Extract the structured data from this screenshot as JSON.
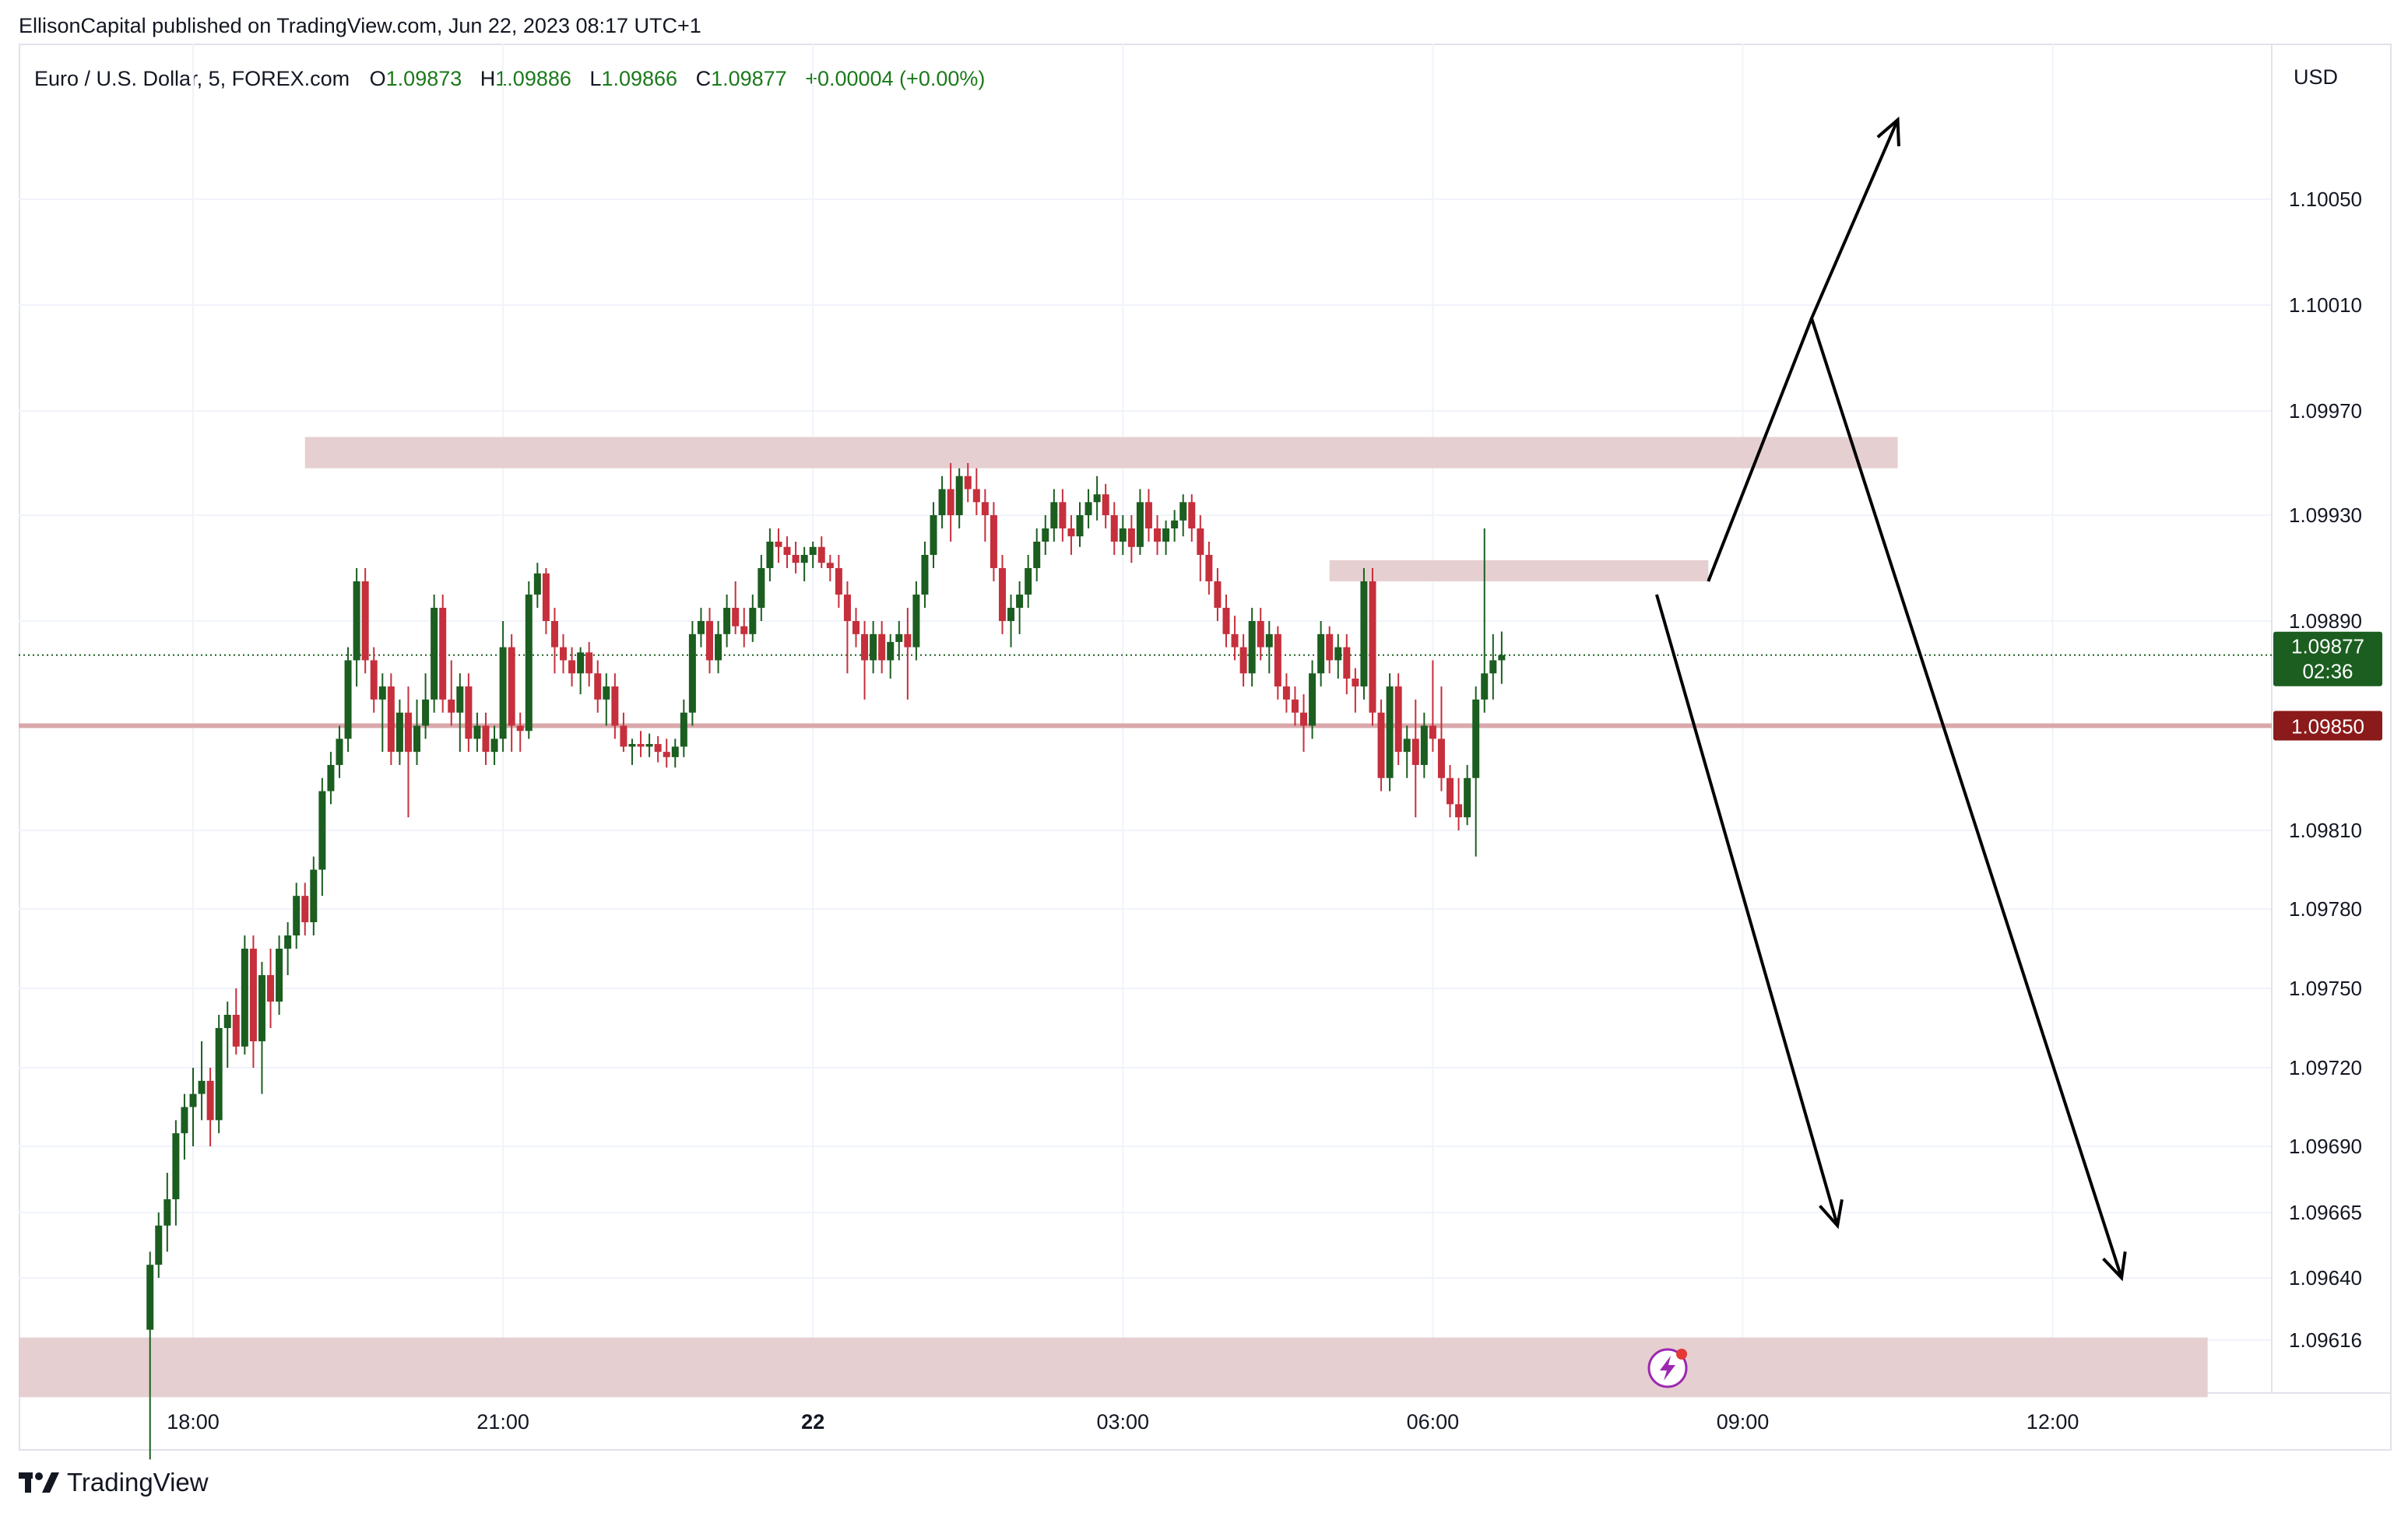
{
  "header": {
    "publisher_line": "EllisonCapital published on TradingView.com, Jun 22, 2023 08:17 UTC+1"
  },
  "legend": {
    "symbol": "Euro / U.S. Dollar, 5, FOREX.com",
    "open_label": "O",
    "open": "1.09873",
    "high_label": "H",
    "high": "1.09886",
    "low_label": "L",
    "low": "1.09866",
    "close_label": "C",
    "close": "1.09877",
    "change": "+0.00004 (+0.00%)"
  },
  "currency": "USD",
  "footer": {
    "brand": "TradingView"
  },
  "colors": {
    "up": "#1b5e20",
    "down": "#c62f3c",
    "zone": "#e6cfd0",
    "line": "#d9a8ab",
    "badge_red": "#8b1a1a",
    "badge_green": "#1b5e20"
  },
  "chart_data": {
    "type": "candlestick",
    "x_ticks": [
      "18:00",
      "21:00",
      "22",
      "03:00",
      "06:00",
      "09:00",
      "12:00"
    ],
    "y_ticks": [
      "1.10050",
      "1.10010",
      "1.09970",
      "1.09930",
      "1.09890",
      "1.09810",
      "1.09780",
      "1.09750",
      "1.09720",
      "1.09690",
      "1.09665",
      "1.09640",
      "1.09616"
    ],
    "price_badges": [
      {
        "value": "1.09877",
        "sub": "02:36",
        "color": "green"
      },
      {
        "value": "1.09850",
        "color": "red"
      }
    ],
    "zones": [
      {
        "time_from": "19:05",
        "time_to": "10:30",
        "price_low": 1.09948,
        "price_high": 1.0996
      },
      {
        "time_from": "05:00",
        "time_to": "08:40",
        "price_low": 1.09905,
        "price_high": 1.09913
      },
      {
        "time_from": "16:15",
        "time_to": "13:30",
        "price_low": 1.09594,
        "price_high": 1.09617
      }
    ],
    "horizontal_line": 1.0985,
    "current_price": 1.09877,
    "candles": [
      [
        1.0962,
        1.0965,
        1.0957,
        1.09645
      ],
      [
        1.09645,
        1.09665,
        1.0964,
        1.0966
      ],
      [
        1.0966,
        1.0968,
        1.0965,
        1.0967
      ],
      [
        1.0967,
        1.097,
        1.0966,
        1.09695
      ],
      [
        1.09695,
        1.0971,
        1.09685,
        1.09705
      ],
      [
        1.09705,
        1.0972,
        1.0969,
        1.0971
      ],
      [
        1.0971,
        1.0973,
        1.097,
        1.09715
      ],
      [
        1.09715,
        1.0972,
        1.0969,
        1.097
      ],
      [
        1.097,
        1.0974,
        1.09695,
        1.09735
      ],
      [
        1.09735,
        1.09745,
        1.0972,
        1.0974
      ],
      [
        1.0974,
        1.0975,
        1.09725,
        1.09728
      ],
      [
        1.09728,
        1.0977,
        1.09725,
        1.09765
      ],
      [
        1.09765,
        1.0977,
        1.0972,
        1.0973
      ],
      [
        1.0973,
        1.0976,
        1.0971,
        1.09755
      ],
      [
        1.09755,
        1.09765,
        1.09735,
        1.09745
      ],
      [
        1.09745,
        1.0977,
        1.0974,
        1.09765
      ],
      [
        1.09765,
        1.09775,
        1.09755,
        1.0977
      ],
      [
        1.0977,
        1.0979,
        1.09765,
        1.09785
      ],
      [
        1.09785,
        1.0979,
        1.0977,
        1.09775
      ],
      [
        1.09775,
        1.098,
        1.0977,
        1.09795
      ],
      [
        1.09795,
        1.0983,
        1.09785,
        1.09825
      ],
      [
        1.09825,
        1.0984,
        1.0982,
        1.09835
      ],
      [
        1.09835,
        1.0985,
        1.0983,
        1.09845
      ],
      [
        1.09845,
        1.0988,
        1.0984,
        1.09875
      ],
      [
        1.09875,
        1.0991,
        1.09865,
        1.09905
      ],
      [
        1.09905,
        1.0991,
        1.0987,
        1.09875
      ],
      [
        1.09875,
        1.0988,
        1.09855,
        1.0986
      ],
      [
        1.0986,
        1.0987,
        1.0984,
        1.09865
      ],
      [
        1.09865,
        1.0987,
        1.09835,
        1.0984
      ],
      [
        1.0984,
        1.0986,
        1.09835,
        1.09855
      ],
      [
        1.09855,
        1.09865,
        1.09815,
        1.0984
      ],
      [
        1.0984,
        1.0986,
        1.09835,
        1.0985
      ],
      [
        1.0985,
        1.0987,
        1.09845,
        1.0986
      ],
      [
        1.0986,
        1.099,
        1.09855,
        1.09895
      ],
      [
        1.09895,
        1.099,
        1.09855,
        1.0986
      ],
      [
        1.0986,
        1.09875,
        1.0985,
        1.09855
      ],
      [
        1.09855,
        1.0987,
        1.0984,
        1.09865
      ],
      [
        1.09865,
        1.0987,
        1.0984,
        1.09845
      ],
      [
        1.09845,
        1.09855,
        1.0984,
        1.0985
      ],
      [
        1.0985,
        1.09855,
        1.09835,
        1.0984
      ],
      [
        1.0984,
        1.0985,
        1.09835,
        1.09845
      ],
      [
        1.09845,
        1.0989,
        1.0984,
        1.0988
      ],
      [
        1.0988,
        1.09885,
        1.0984,
        1.0985
      ],
      [
        1.0985,
        1.09855,
        1.0984,
        1.09848
      ],
      [
        1.09848,
        1.09905,
        1.09845,
        1.099
      ],
      [
        1.099,
        1.09912,
        1.09895,
        1.09908
      ],
      [
        1.09908,
        1.0991,
        1.09885,
        1.0989
      ],
      [
        1.0989,
        1.09895,
        1.0987,
        1.0988
      ],
      [
        1.0988,
        1.09885,
        1.0987,
        1.09875
      ],
      [
        1.09875,
        1.0988,
        1.09865,
        1.0987
      ],
      [
        1.0987,
        1.0988,
        1.09862,
        1.09878
      ],
      [
        1.09878,
        1.09882,
        1.09865,
        1.0987
      ],
      [
        1.0987,
        1.09875,
        1.09855,
        1.0986
      ],
      [
        1.0986,
        1.0987,
        1.0985,
        1.09865
      ],
      [
        1.09865,
        1.0987,
        1.09845,
        1.0985
      ],
      [
        1.0985,
        1.09855,
        1.0984,
        1.09842
      ],
      [
        1.09842,
        1.09845,
        1.09835,
        1.09843
      ],
      [
        1.09843,
        1.09848,
        1.09838,
        1.09842
      ],
      [
        1.09842,
        1.09847,
        1.09838,
        1.09843
      ],
      [
        1.09843,
        1.09846,
        1.09836,
        1.0984
      ],
      [
        1.0984,
        1.09845,
        1.09834,
        1.09838
      ],
      [
        1.09838,
        1.09845,
        1.09834,
        1.09842
      ],
      [
        1.09842,
        1.0986,
        1.09838,
        1.09855
      ],
      [
        1.09855,
        1.0989,
        1.0985,
        1.09885
      ],
      [
        1.09885,
        1.09895,
        1.0988,
        1.0989
      ],
      [
        1.0989,
        1.09895,
        1.0987,
        1.09875
      ],
      [
        1.09875,
        1.0989,
        1.0987,
        1.09885
      ],
      [
        1.09885,
        1.099,
        1.0988,
        1.09895
      ],
      [
        1.09895,
        1.09905,
        1.09885,
        1.09888
      ],
      [
        1.09888,
        1.09895,
        1.0988,
        1.09885
      ],
      [
        1.09885,
        1.099,
        1.09882,
        1.09895
      ],
      [
        1.09895,
        1.09915,
        1.0989,
        1.0991
      ],
      [
        1.0991,
        1.09925,
        1.09905,
        1.0992
      ],
      [
        1.0992,
        1.09925,
        1.09912,
        1.09918
      ],
      [
        1.09918,
        1.09922,
        1.0991,
        1.09915
      ],
      [
        1.09915,
        1.0992,
        1.09908,
        1.09912
      ],
      [
        1.09912,
        1.09918,
        1.09905,
        1.09915
      ],
      [
        1.09915,
        1.0992,
        1.0991,
        1.09918
      ],
      [
        1.09918,
        1.09922,
        1.0991,
        1.09912
      ],
      [
        1.09912,
        1.09915,
        1.09905,
        1.0991
      ],
      [
        1.0991,
        1.09915,
        1.09895,
        1.099
      ],
      [
        1.099,
        1.09905,
        1.0987,
        1.0989
      ],
      [
        1.0989,
        1.09895,
        1.0988,
        1.09885
      ],
      [
        1.09885,
        1.0989,
        1.0986,
        1.09875
      ],
      [
        1.09875,
        1.0989,
        1.0987,
        1.09885
      ],
      [
        1.09885,
        1.0989,
        1.0987,
        1.09875
      ],
      [
        1.09875,
        1.09885,
        1.09868,
        1.09882
      ],
      [
        1.09882,
        1.0989,
        1.09875,
        1.09885
      ],
      [
        1.09885,
        1.09895,
        1.0986,
        1.0988
      ],
      [
        1.0988,
        1.09905,
        1.09875,
        1.099
      ],
      [
        1.099,
        1.0992,
        1.09895,
        1.09915
      ],
      [
        1.09915,
        1.09935,
        1.0991,
        1.0993
      ],
      [
        1.0993,
        1.09945,
        1.09925,
        1.0994
      ],
      [
        1.0994,
        1.0995,
        1.0992,
        1.0993
      ],
      [
        1.0993,
        1.09948,
        1.09925,
        1.09945
      ],
      [
        1.09945,
        1.0995,
        1.09935,
        1.0994
      ],
      [
        1.0994,
        1.09948,
        1.0993,
        1.09935
      ],
      [
        1.09935,
        1.0994,
        1.0992,
        1.0993
      ],
      [
        1.0993,
        1.09935,
        1.09905,
        1.0991
      ],
      [
        1.0991,
        1.09915,
        1.09885,
        1.0989
      ],
      [
        1.0989,
        1.099,
        1.0988,
        1.09895
      ],
      [
        1.09895,
        1.09905,
        1.09885,
        1.099
      ],
      [
        1.099,
        1.09915,
        1.09895,
        1.0991
      ],
      [
        1.0991,
        1.09925,
        1.09905,
        1.0992
      ],
      [
        1.0992,
        1.0993,
        1.09915,
        1.09925
      ],
      [
        1.09925,
        1.0994,
        1.0992,
        1.09935
      ],
      [
        1.09935,
        1.0994,
        1.0992,
        1.09925
      ],
      [
        1.09925,
        1.0993,
        1.09915,
        1.09922
      ],
      [
        1.09922,
        1.09935,
        1.09918,
        1.0993
      ],
      [
        1.0993,
        1.0994,
        1.09925,
        1.09935
      ],
      [
        1.09935,
        1.09945,
        1.09928,
        1.09938
      ],
      [
        1.09938,
        1.09942,
        1.09925,
        1.0993
      ],
      [
        1.0993,
        1.09935,
        1.09915,
        1.0992
      ],
      [
        1.0992,
        1.0993,
        1.09915,
        1.09925
      ],
      [
        1.09925,
        1.0993,
        1.09912,
        1.09918
      ],
      [
        1.09918,
        1.0994,
        1.09915,
        1.09935
      ],
      [
        1.09935,
        1.0994,
        1.0992,
        1.09925
      ],
      [
        1.09925,
        1.0993,
        1.09915,
        1.0992
      ],
      [
        1.0992,
        1.09928,
        1.09915,
        1.09925
      ],
      [
        1.09925,
        1.09932,
        1.0992,
        1.09928
      ],
      [
        1.09928,
        1.09938,
        1.09922,
        1.09935
      ],
      [
        1.09935,
        1.09938,
        1.0992,
        1.09925
      ],
      [
        1.09925,
        1.0993,
        1.09905,
        1.09915
      ],
      [
        1.09915,
        1.0992,
        1.099,
        1.09905
      ],
      [
        1.09905,
        1.0991,
        1.0989,
        1.09895
      ],
      [
        1.09895,
        1.099,
        1.0988,
        1.09885
      ],
      [
        1.09885,
        1.09892,
        1.09875,
        1.0988
      ],
      [
        1.0988,
        1.09885,
        1.09865,
        1.0987
      ],
      [
        1.0987,
        1.09895,
        1.09865,
        1.0989
      ],
      [
        1.0989,
        1.09895,
        1.09875,
        1.0988
      ],
      [
        1.0988,
        1.0989,
        1.0987,
        1.09885
      ],
      [
        1.09885,
        1.09888,
        1.0986,
        1.09865
      ],
      [
        1.09865,
        1.0987,
        1.09855,
        1.0986
      ],
      [
        1.0986,
        1.09865,
        1.0985,
        1.09855
      ],
      [
        1.09855,
        1.09862,
        1.0984,
        1.0985
      ],
      [
        1.0985,
        1.09875,
        1.09845,
        1.0987
      ],
      [
        1.0987,
        1.0989,
        1.09865,
        1.09885
      ],
      [
        1.09885,
        1.09888,
        1.0987,
        1.09875
      ],
      [
        1.09875,
        1.09885,
        1.09868,
        1.0988
      ],
      [
        1.0988,
        1.09885,
        1.09862,
        1.09868
      ],
      [
        1.09868,
        1.09872,
        1.09855,
        1.09865
      ],
      [
        1.09865,
        1.0991,
        1.0986,
        1.09905
      ],
      [
        1.09905,
        1.0991,
        1.0985,
        1.09855
      ],
      [
        1.09855,
        1.0986,
        1.09825,
        1.0983
      ],
      [
        1.0983,
        1.0987,
        1.09825,
        1.09865
      ],
      [
        1.09865,
        1.0987,
        1.09835,
        1.0984
      ],
      [
        1.0984,
        1.0985,
        1.0983,
        1.09845
      ],
      [
        1.09845,
        1.0986,
        1.09815,
        1.09835
      ],
      [
        1.09835,
        1.09855,
        1.0983,
        1.0985
      ],
      [
        1.0985,
        1.09875,
        1.0984,
        1.09845
      ],
      [
        1.09845,
        1.09865,
        1.09825,
        1.0983
      ],
      [
        1.0983,
        1.09835,
        1.09815,
        1.0982
      ],
      [
        1.0982,
        1.0983,
        1.0981,
        1.09815
      ],
      [
        1.09815,
        1.09835,
        1.09812,
        1.0983
      ],
      [
        1.0983,
        1.09865,
        1.098,
        1.0986
      ],
      [
        1.0986,
        1.09925,
        1.09855,
        1.0987
      ],
      [
        1.0987,
        1.09885,
        1.0986,
        1.09875
      ],
      [
        1.09875,
        1.09886,
        1.09866,
        1.09877
      ]
    ],
    "annotations": [
      {
        "kind": "arrow",
        "from": [
          "08:40",
          1.09905
        ],
        "via": [
          "09:40",
          1.10005
        ],
        "to": [
          "10:30",
          1.1008
        ]
      },
      {
        "kind": "arrow",
        "from": [
          "09:40",
          1.10005
        ],
        "to": [
          "12:40",
          1.0964
        ]
      },
      {
        "kind": "arrow",
        "from": [
          "08:10",
          1.099
        ],
        "to": [
          "09:55",
          1.0966
        ]
      }
    ]
  }
}
